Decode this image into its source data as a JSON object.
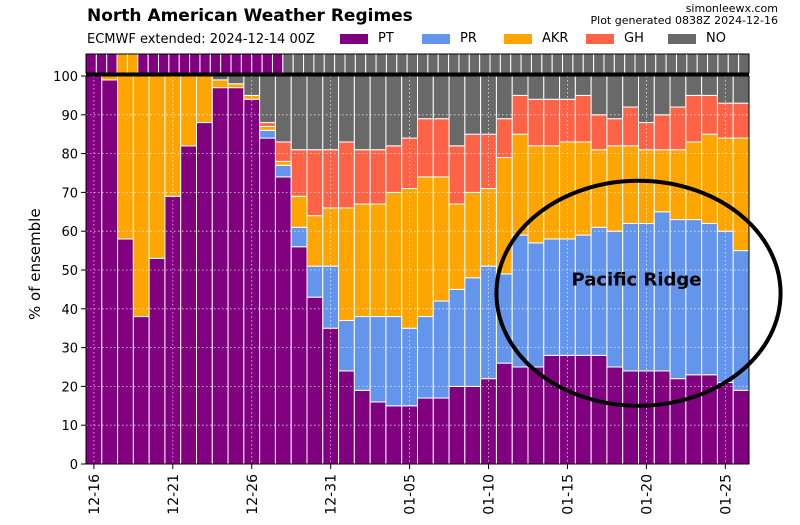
{
  "header": {
    "title": "North American Weather Regimes",
    "subtitle": "ECMWF extended: 2024-12-14 00Z",
    "site": "simonleewx.com",
    "generated": "Plot generated 0838Z 2024-12-16"
  },
  "colors": {
    "PT": "#800080",
    "PR": "#6495ed",
    "AKR": "#ffa500",
    "GH": "#ff6347",
    "NO": "#696969"
  },
  "chart_data": {
    "type": "bar",
    "stacked": true,
    "ylabel": "% of ensemble",
    "ylim": [
      0,
      100
    ],
    "yticks": [
      0,
      10,
      20,
      30,
      40,
      50,
      60,
      70,
      80,
      90,
      100
    ],
    "x_tick_labels": [
      "12-16",
      "12-21",
      "12-26",
      "12-31",
      "01-05",
      "01-10",
      "01-15",
      "01-20",
      "01-25"
    ],
    "x_tick_days": [
      0,
      5,
      10,
      15,
      20,
      25,
      30,
      35,
      40
    ],
    "series": [
      {
        "name": "PT",
        "values": [
          100,
          99,
          58,
          38,
          53,
          69,
          82,
          88,
          97,
          97,
          94,
          84,
          74,
          56,
          43,
          35,
          24,
          19,
          16,
          15,
          15,
          17,
          17,
          20,
          20,
          22,
          26,
          25,
          25,
          28,
          28,
          28,
          28,
          25,
          24,
          24,
          24,
          22,
          23,
          23,
          21,
          19
        ]
      },
      {
        "name": "PR",
        "values": [
          0,
          0,
          0,
          0,
          0,
          0,
          0,
          0,
          0,
          0,
          0,
          2,
          3,
          5,
          8,
          16,
          13,
          19,
          22,
          23,
          20,
          21,
          25,
          25,
          28,
          29,
          23,
          34,
          32,
          30,
          30,
          31,
          33,
          35,
          38,
          38,
          41,
          41,
          40,
          39,
          39,
          36
        ]
      },
      {
        "name": "AKR",
        "values": [
          0,
          1,
          42,
          62,
          47,
          31,
          18,
          12,
          2,
          1,
          1,
          1,
          1,
          8,
          13,
          15,
          29,
          29,
          29,
          32,
          36,
          36,
          32,
          22,
          22,
          20,
          30,
          26,
          25,
          24,
          25,
          24,
          20,
          22,
          20,
          19,
          16,
          18,
          20,
          23,
          24,
          29
        ]
      },
      {
        "name": "GH",
        "values": [
          0,
          0,
          0,
          0,
          0,
          0,
          0,
          0,
          0,
          0,
          0,
          1,
          5,
          12,
          17,
          15,
          17,
          14,
          14,
          12,
          13,
          15,
          15,
          15,
          15,
          14,
          10,
          10,
          12,
          12,
          11,
          12,
          9,
          7,
          10,
          7,
          9,
          11,
          12,
          10,
          9,
          9
        ]
      },
      {
        "name": "NO",
        "values": [
          0,
          0,
          0,
          0,
          0,
          0,
          0,
          0,
          1,
          2,
          5,
          12,
          17,
          19,
          19,
          19,
          17,
          19,
          19,
          18,
          16,
          11,
          11,
          18,
          15,
          15,
          11,
          5,
          6,
          6,
          6,
          5,
          10,
          11,
          8,
          12,
          10,
          8,
          5,
          5,
          7,
          7
        ]
      }
    ],
    "dominant_regime_strip": [
      "PT",
      "PT",
      "PT",
      "AKR",
      "AKR",
      "PT",
      "PT",
      "PT",
      "PT",
      "PT",
      "PT",
      "PT",
      "PT",
      "PT",
      "PT",
      "PT",
      "PT",
      "PT",
      "PT",
      "NO",
      "NO",
      "NO",
      "NO",
      "NO",
      "NO",
      "NO",
      "NO",
      "NO",
      "NO",
      "NO",
      "NO",
      "NO",
      "NO",
      "NO",
      "NO",
      "NO",
      "NO",
      "NO",
      "NO",
      "NO",
      "NO",
      "NO",
      "NO",
      "NO",
      "NO",
      "NO",
      "NO",
      "NO",
      "NO",
      "NO",
      "NO",
      "NO",
      "NO",
      "NO",
      "NO",
      "NO",
      "NO",
      "NO",
      "NO",
      "NO",
      "NO",
      "NO",
      "NO",
      "NO"
    ],
    "annotation": {
      "text": "Pacific Ridge",
      "center_day": 34.5,
      "center_value": 44,
      "day_radius": 9,
      "value_radius": 29
    }
  }
}
